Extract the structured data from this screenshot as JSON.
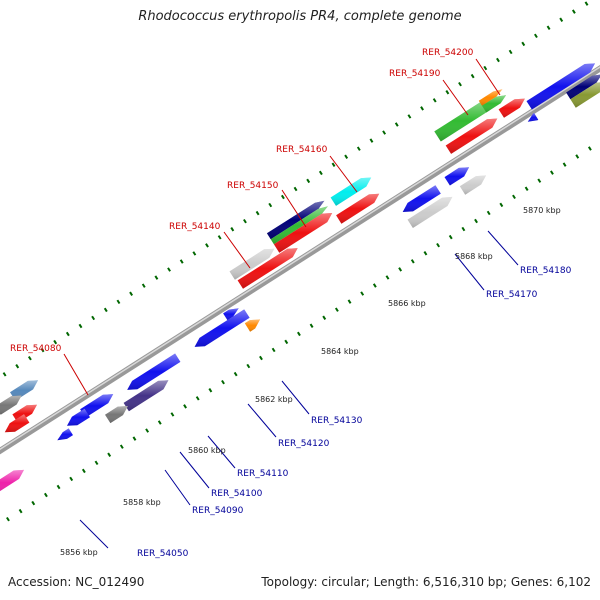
{
  "title": "Rhodococcus erythropolis PR4, complete genome",
  "footer": {
    "accession": "Accession: NC_012490",
    "topology": "Topology: circular; Length: 6,516,310 bp; Genes: 6,102"
  },
  "colors": {
    "backbone": "#999999",
    "top_strand_label": "#cc0000",
    "bottom_strand_label": "#000099",
    "tick": "#006600",
    "palette": {
      "red": "#ee1111",
      "blue": "#1111ee",
      "navy": "#000077",
      "green": "#33bb33",
      "orange": "#ff8800",
      "cyan": "#00eeee",
      "gray": "#777777",
      "lightgray": "#cccccc",
      "purple": "#443388",
      "magenta": "#ee22aa",
      "steelblue": "#5588bb",
      "olive": "#889933"
    }
  },
  "scale_labels": [
    {
      "text": "5856 kbp",
      "kbp": 5856
    },
    {
      "text": "5858 kbp",
      "kbp": 5858
    },
    {
      "text": "5860 kbp",
      "kbp": 5860
    },
    {
      "text": "5862 kbp",
      "kbp": 5862
    },
    {
      "text": "5864 kbp",
      "kbp": 5864
    },
    {
      "text": "5866 kbp",
      "kbp": 5866
    },
    {
      "text": "5868 kbp",
      "kbp": 5868
    },
    {
      "text": "5870 kbp",
      "kbp": 5870
    }
  ],
  "gene_labels": [
    {
      "text": "RER_54050",
      "strand": "bottom"
    },
    {
      "text": "RER_54080",
      "strand": "top"
    },
    {
      "text": "RER_54090",
      "strand": "bottom"
    },
    {
      "text": "RER_54100",
      "strand": "bottom"
    },
    {
      "text": "RER_54110",
      "strand": "bottom"
    },
    {
      "text": "RER_54120",
      "strand": "bottom"
    },
    {
      "text": "RER_54130",
      "strand": "bottom"
    },
    {
      "text": "RER_54140",
      "strand": "top"
    },
    {
      "text": "RER_54150",
      "strand": "top"
    },
    {
      "text": "RER_54160",
      "strand": "top"
    },
    {
      "text": "RER_54170",
      "strand": "bottom"
    },
    {
      "text": "RER_54180",
      "strand": "bottom"
    },
    {
      "text": "RER_54190",
      "strand": "top"
    },
    {
      "text": "RER_54200",
      "strand": "top"
    }
  ]
}
